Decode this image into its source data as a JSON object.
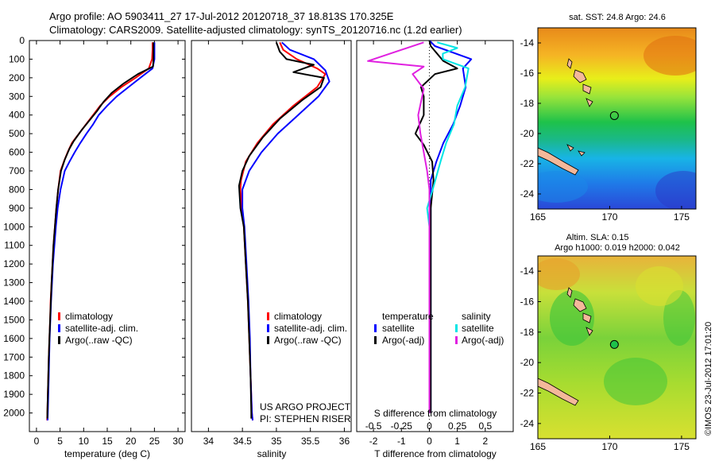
{
  "header": {
    "title_line1": "Argo profile: AO 5903411_27 17-Jul-2012 20120718_37 18.813S 170.325E",
    "title_line2": "Climatology: CARS2009. Satellite-adjusted climatology: synTS_20120716.nc (1.2d earlier)"
  },
  "credits": {
    "project_line1": "US ARGO PROJECT",
    "project_line2": "PI: STEPHEN RISER",
    "imos_stamp": "©IMOS 23-Jul-2012 17:01:20"
  },
  "colors": {
    "climatology": "#ff0000",
    "satellite": "#0000ff",
    "argo": "#000000",
    "salinity_satellite": "#00e5e5",
    "salinity_argo": "#e020e0"
  },
  "chart_data": [
    {
      "id": "temperature",
      "type": "line",
      "xlabel": "temperature (deg C)",
      "ylabel": "",
      "xlim": [
        -1.5,
        31.5
      ],
      "ylim": [
        2100,
        0
      ],
      "xticks": [
        0,
        5,
        10,
        15,
        20,
        25,
        30
      ],
      "yticks": [
        0,
        100,
        200,
        300,
        400,
        500,
        600,
        700,
        800,
        900,
        1000,
        1100,
        1200,
        1300,
        1400,
        1500,
        1600,
        1700,
        1800,
        1900,
        2000
      ],
      "legend": [
        "climatology",
        "satellite-adj. clim.",
        "Argo(..raw -QC)"
      ],
      "legend_placement": "lower-center",
      "series": [
        {
          "name": "climatology",
          "color": "#ff0000",
          "points": [
            [
              24.6,
              10
            ],
            [
              24.6,
              50
            ],
            [
              24.5,
              100
            ],
            [
              23.8,
              150
            ],
            [
              21,
              200
            ],
            [
              18,
              250
            ],
            [
              15.5,
              300
            ],
            [
              13.5,
              350
            ],
            [
              12,
              400
            ],
            [
              10.5,
              450
            ],
            [
              9,
              500
            ],
            [
              7.5,
              550
            ],
            [
              6.6,
              600
            ],
            [
              5.8,
              650
            ],
            [
              5.1,
              700
            ],
            [
              4.6,
              800
            ],
            [
              4.2,
              900
            ],
            [
              3.9,
              1000
            ],
            [
              3.6,
              1100
            ],
            [
              3.4,
              1200
            ],
            [
              3.2,
              1300
            ],
            [
              3.0,
              1400
            ],
            [
              2.9,
              1500
            ],
            [
              2.75,
              1600
            ],
            [
              2.6,
              1700
            ],
            [
              2.5,
              1800
            ],
            [
              2.4,
              1900
            ],
            [
              2.3,
              2000
            ],
            [
              2.25,
              2040
            ]
          ]
        },
        {
          "name": "satellite-adj. clim.",
          "color": "#0000ff",
          "points": [
            [
              25.0,
              10
            ],
            [
              25.0,
              50
            ],
            [
              25.0,
              100
            ],
            [
              24.6,
              150
            ],
            [
              22,
              200
            ],
            [
              19.5,
              250
            ],
            [
              17,
              300
            ],
            [
              15,
              350
            ],
            [
              13.2,
              400
            ],
            [
              12,
              450
            ],
            [
              10.6,
              500
            ],
            [
              9.3,
              550
            ],
            [
              8.1,
              600
            ],
            [
              7,
              650
            ],
            [
              6,
              700
            ],
            [
              5.1,
              800
            ],
            [
              4.5,
              900
            ],
            [
              4.1,
              1000
            ],
            [
              3.8,
              1100
            ],
            [
              3.5,
              1200
            ],
            [
              3.3,
              1300
            ],
            [
              3.1,
              1400
            ],
            [
              2.95,
              1500
            ],
            [
              2.8,
              1600
            ],
            [
              2.7,
              1700
            ],
            [
              2.6,
              1800
            ],
            [
              2.5,
              1900
            ],
            [
              2.4,
              2000
            ],
            [
              2.35,
              2040
            ]
          ]
        },
        {
          "name": "Argo(..raw -QC)",
          "color": "#000000",
          "points": [
            [
              24.8,
              10
            ],
            [
              24.8,
              50
            ],
            [
              24.8,
              100
            ],
            [
              24.7,
              140
            ],
            [
              21.5,
              180
            ],
            [
              18.5,
              230
            ],
            [
              16,
              280
            ],
            [
              14.2,
              330
            ],
            [
              12.8,
              380
            ],
            [
              11.2,
              430
            ],
            [
              9.6,
              480
            ],
            [
              7.9,
              540
            ],
            [
              7,
              580
            ],
            [
              6,
              640
            ],
            [
              5.2,
              700
            ],
            [
              4.6,
              800
            ],
            [
              4.2,
              900
            ],
            [
              3.9,
              1000
            ],
            [
              3.6,
              1100
            ],
            [
              3.4,
              1200
            ],
            [
              3.2,
              1300
            ],
            [
              3.05,
              1400
            ],
            [
              2.9,
              1500
            ],
            [
              2.75,
              1600
            ],
            [
              2.6,
              1700
            ],
            [
              2.5,
              1800
            ],
            [
              2.4,
              1900
            ],
            [
              2.3,
              2000
            ],
            [
              2.3,
              2030
            ]
          ]
        }
      ]
    },
    {
      "id": "salinity",
      "type": "line",
      "xlabel": "salinity",
      "ylabel": "",
      "xlim": [
        33.75,
        36.1
      ],
      "ylim": [
        2100,
        0
      ],
      "xticks": [
        34,
        34.5,
        35,
        35.5,
        36
      ],
      "legend": [
        "climatology",
        "satellite-adj. clim.",
        "Argo(..raw -QC)"
      ],
      "legend_placement": "lower-right",
      "series": [
        {
          "name": "climatology",
          "color": "#ff0000",
          "points": [
            [
              35.05,
              10
            ],
            [
              35.1,
              50
            ],
            [
              35.3,
              100
            ],
            [
              35.6,
              150
            ],
            [
              35.72,
              180
            ],
            [
              35.6,
              250
            ],
            [
              35.25,
              350
            ],
            [
              34.95,
              450
            ],
            [
              34.72,
              550
            ],
            [
              34.55,
              650
            ],
            [
              34.48,
              750
            ],
            [
              34.47,
              800
            ],
            [
              34.49,
              900
            ],
            [
              34.52,
              1000
            ],
            [
              34.55,
              1200
            ],
            [
              34.58,
              1400
            ],
            [
              34.6,
              1600
            ],
            [
              34.62,
              1800
            ],
            [
              34.64,
              2000
            ],
            [
              34.65,
              2040
            ]
          ]
        },
        {
          "name": "satellite-adj. clim.",
          "color": "#0000ff",
          "points": [
            [
              35.08,
              10
            ],
            [
              35.2,
              50
            ],
            [
              35.55,
              100
            ],
            [
              35.72,
              160
            ],
            [
              35.78,
              220
            ],
            [
              35.62,
              300
            ],
            [
              35.32,
              400
            ],
            [
              35.02,
              500
            ],
            [
              34.78,
              600
            ],
            [
              34.6,
              700
            ],
            [
              34.5,
              800
            ],
            [
              34.5,
              900
            ],
            [
              34.53,
              1000
            ],
            [
              34.56,
              1200
            ],
            [
              34.59,
              1400
            ],
            [
              34.61,
              1600
            ],
            [
              34.62,
              1800
            ],
            [
              34.64,
              2000
            ],
            [
              34.65,
              2040
            ]
          ]
        },
        {
          "name": "Argo(..raw -QC)",
          "color": "#000000",
          "points": [
            [
              35.0,
              10
            ],
            [
              35.05,
              60
            ],
            [
              35.15,
              100
            ],
            [
              35.55,
              130
            ],
            [
              35.25,
              170
            ],
            [
              35.7,
              200
            ],
            [
              35.65,
              250
            ],
            [
              35.38,
              320
            ],
            [
              35.05,
              420
            ],
            [
              34.8,
              520
            ],
            [
              34.6,
              620
            ],
            [
              34.5,
              700
            ],
            [
              34.45,
              780
            ],
            [
              34.47,
              900
            ],
            [
              34.52,
              1000
            ],
            [
              34.55,
              1200
            ],
            [
              34.58,
              1400
            ],
            [
              34.6,
              1600
            ],
            [
              34.62,
              1800
            ],
            [
              34.63,
              2000
            ],
            [
              34.63,
              2030
            ]
          ]
        }
      ]
    },
    {
      "id": "differences",
      "type": "line",
      "xlabel": "T difference from climatology",
      "xlabel_top": "S difference from climatology",
      "xlim": [
        -2.6,
        3.0
      ],
      "ylim": [
        2100,
        0
      ],
      "xticks": [
        -2,
        -1,
        0,
        1,
        2
      ],
      "xticks_s": [
        -0.5,
        -0.25,
        0,
        0.25,
        0.5
      ],
      "legend_t_title": "temperature",
      "legend_s_title": "salinity",
      "legend": [
        "satellite",
        "Argo(-adj)",
        "satellite",
        "Argo(-adj)"
      ],
      "legend_placement": "lower",
      "series": [
        {
          "name": "satellite",
          "group": "temperature",
          "color": "#0000ff",
          "points": [
            [
              0,
              0
            ],
            [
              0.2,
              30
            ],
            [
              1.5,
              100
            ],
            [
              1.2,
              150
            ],
            [
              1.3,
              250
            ],
            [
              1.1,
              350
            ],
            [
              0.85,
              450
            ],
            [
              0.5,
              550
            ],
            [
              0.25,
              650
            ],
            [
              0.05,
              750
            ],
            [
              0.05,
              900
            ],
            [
              0.05,
              1100
            ],
            [
              0.05,
              1400
            ],
            [
              0.05,
              1700
            ],
            [
              0.05,
              2000
            ]
          ]
        },
        {
          "name": "Argo(-adj)",
          "group": "temperature",
          "color": "#000000",
          "points": [
            [
              0,
              0
            ],
            [
              0.05,
              30
            ],
            [
              0.5,
              110
            ],
            [
              1.0,
              150
            ],
            [
              0.2,
              180
            ],
            [
              -0.3,
              250
            ],
            [
              -0.2,
              300
            ],
            [
              -0.2,
              400
            ],
            [
              -0.5,
              500
            ],
            [
              -0.2,
              560
            ],
            [
              0.1,
              650
            ],
            [
              0.15,
              750
            ],
            [
              0.05,
              900
            ],
            [
              0.05,
              1100
            ],
            [
              0.05,
              1400
            ],
            [
              0.05,
              1700
            ],
            [
              0.05,
              1900
            ],
            [
              0.05,
              2000
            ]
          ]
        },
        {
          "name": "satellite",
          "group": "salinity",
          "color": "#00e5e5",
          "points": [
            [
              0.07,
              10
            ],
            [
              0.25,
              40
            ],
            [
              0.12,
              70
            ],
            [
              0.12,
              100
            ],
            [
              0.35,
              150
            ],
            [
              0.32,
              250
            ],
            [
              0.25,
              350
            ],
            [
              0.22,
              450
            ],
            [
              0.15,
              550
            ],
            [
              0.1,
              650
            ],
            [
              0.03,
              800
            ],
            [
              -0.02,
              900
            ],
            [
              0,
              1000
            ],
            [
              0,
              1100
            ],
            [
              0,
              1300
            ],
            [
              0,
              1500
            ],
            [
              0,
              1800
            ],
            [
              0,
              2000
            ]
          ]
        },
        {
          "name": "Argo(-adj)",
          "group": "salinity",
          "color": "#e020e0",
          "points": [
            [
              -0.05,
              10
            ],
            [
              -0.55,
              110
            ],
            [
              -0.05,
              140
            ],
            [
              -0.15,
              180
            ],
            [
              -0.05,
              260
            ],
            [
              -0.1,
              400
            ],
            [
              -0.08,
              500
            ],
            [
              -0.05,
              600
            ],
            [
              -0.02,
              700
            ],
            [
              0,
              800
            ],
            [
              0,
              1000
            ],
            [
              0,
              1200
            ],
            [
              0,
              1500
            ],
            [
              0,
              1800
            ],
            [
              0,
              2000
            ]
          ]
        }
      ]
    },
    {
      "id": "sst_map",
      "type": "heatmap",
      "title": "sat. SST: 24.8 Argo: 24.6",
      "xlim": [
        165,
        176
      ],
      "ylim": [
        -25,
        -13
      ],
      "xticks": [
        165,
        170,
        175
      ],
      "yticks": [
        -14,
        -16,
        -18,
        -20,
        -22,
        -24
      ],
      "marker": {
        "lon": 170.325,
        "lat": -18.813,
        "style": "open-circle"
      }
    },
    {
      "id": "sla_map",
      "type": "heatmap",
      "title_line1": "Altim. SLA: 0.15",
      "title_line2": "Argo h1000: 0.019 h2000: 0.042",
      "xlim": [
        165,
        176
      ],
      "ylim": [
        -25,
        -13
      ],
      "xticks": [
        165,
        170,
        175
      ],
      "yticks": [
        -14,
        -16,
        -18,
        -20,
        -22,
        -24
      ],
      "marker": {
        "lon": 170.325,
        "lat": -18.813,
        "style": "filled-circle"
      }
    }
  ]
}
